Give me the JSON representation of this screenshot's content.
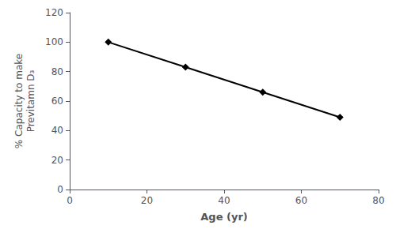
{
  "chart_data": {
    "type": "line",
    "x": [
      10,
      30,
      50,
      70
    ],
    "values": [
      100,
      83,
      66,
      49
    ],
    "xlabel": "Age (yr)",
    "ylabel": "% Capacity to make\nPrevitamn D₃",
    "xlim": [
      0,
      80
    ],
    "ylim": [
      0,
      120
    ],
    "xticks": [
      0,
      20,
      40,
      60,
      80
    ],
    "yticks": [
      0,
      20,
      40,
      60,
      80,
      100,
      120
    ],
    "color": "#000000",
    "marker": "diamond",
    "grid": false
  }
}
